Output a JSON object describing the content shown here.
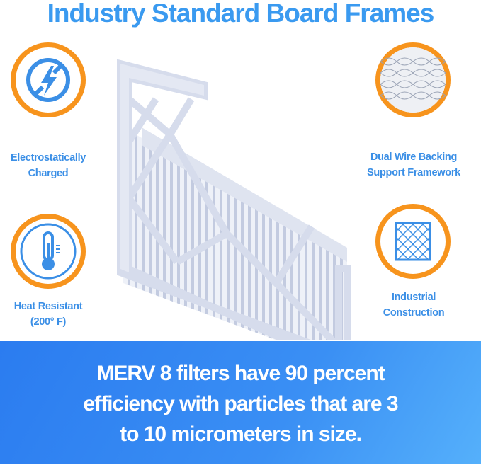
{
  "header": {
    "title": "Industry Standard Board Frames"
  },
  "features": [
    {
      "icon": "no-static-bolt-icon",
      "line1": "Electrostatically",
      "line2": "Charged"
    },
    {
      "icon": "thermometer-icon",
      "line1": "Heat Resistant",
      "line2": "(200° F)"
    },
    {
      "icon": "wire-mesh-icon",
      "line1": "Dual Wire Backing",
      "line2": "Support Framework"
    },
    {
      "icon": "grid-frame-icon",
      "line1": "Industrial",
      "line2": "Construction"
    }
  ],
  "banner": {
    "line1": "MERV 8 filters have 90 percent",
    "line2": "efficiency with particles that are 3",
    "line3": "to 10 micrometers in size."
  },
  "colors": {
    "accent_blue": "#3a9af0",
    "ring_orange": "#f7941d",
    "banner_blue": "#2b7cf0"
  }
}
